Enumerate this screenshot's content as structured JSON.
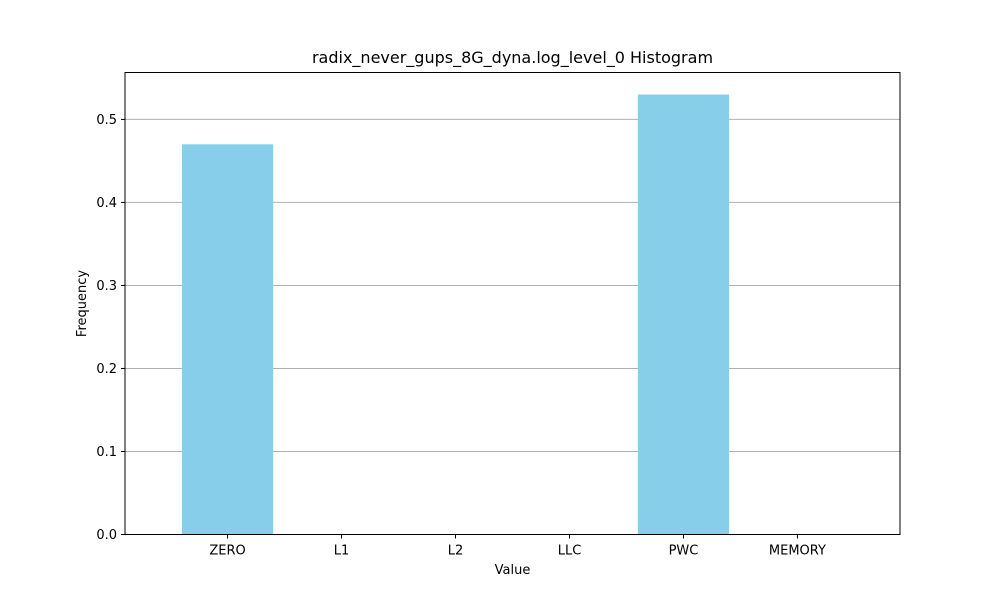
{
  "chart_data": {
    "type": "bar",
    "title": "radix_never_gups_8G_dyna.log_level_0 Histogram",
    "xlabel": "Value",
    "ylabel": "Frequency",
    "categories": [
      "ZERO",
      "L1",
      "L2",
      "LLC",
      "PWC",
      "MEMORY"
    ],
    "values": [
      0.47,
      0.0,
      0.0,
      0.0,
      0.53,
      0.0
    ],
    "ylim": [
      0,
      0.5565
    ],
    "yticks": [
      0.0,
      0.1,
      0.2,
      0.3,
      0.4,
      0.5
    ],
    "ytick_labels": [
      "0.0",
      "0.1",
      "0.2",
      "0.3",
      "0.4",
      "0.5"
    ],
    "grid": "y-axis only",
    "bar_color": "#87ceeb",
    "grid_color": "#b0b0b0",
    "legend": "none"
  }
}
